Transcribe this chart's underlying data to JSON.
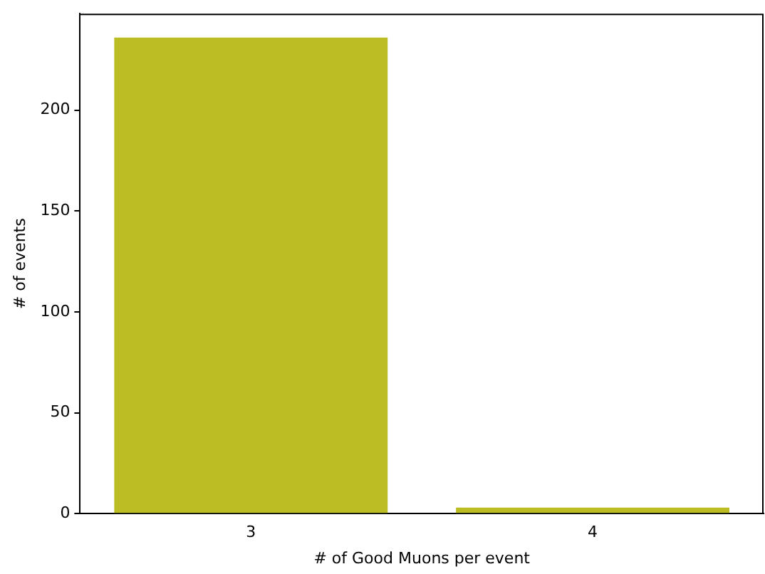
{
  "chart_data": {
    "type": "bar",
    "xlabel": "# of Good Muons per event",
    "ylabel": "# of events",
    "categories": [
      "3",
      "4"
    ],
    "values": [
      236,
      3
    ],
    "color": "#bcbd22",
    "ylim": [
      0,
      247.8
    ],
    "yticks": [
      0,
      50,
      100,
      150,
      200
    ],
    "grid": false,
    "legend": false
  }
}
